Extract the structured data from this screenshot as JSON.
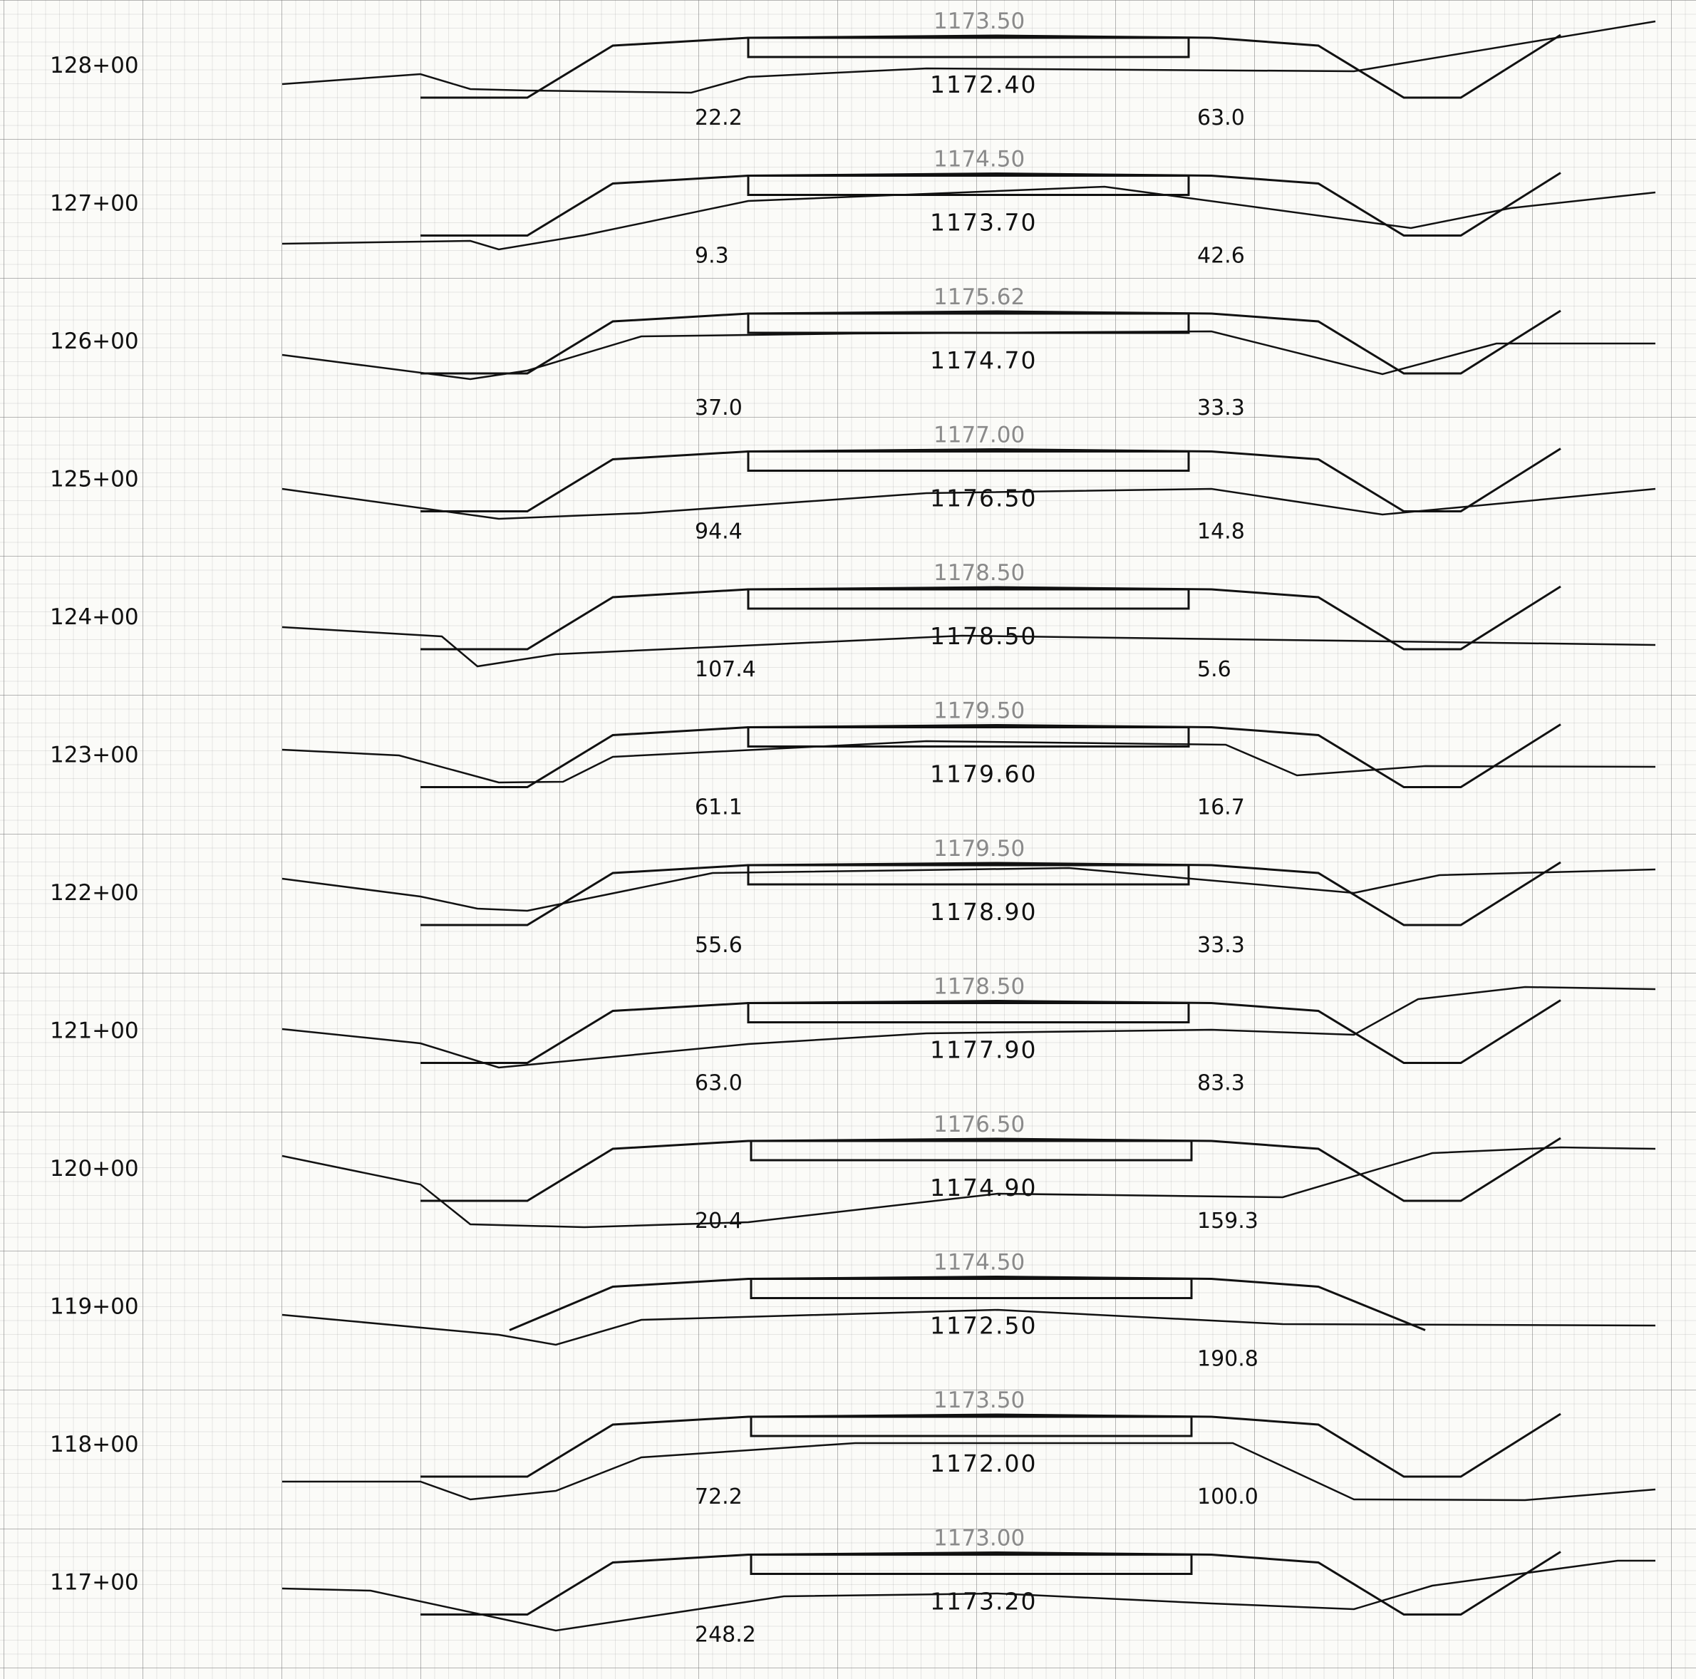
{
  "sections": [
    {
      "station": "128+00",
      "design_elev": "1173.50",
      "ground_elev": "1172.40",
      "area_left": "22.2",
      "area_right": "63.0"
    },
    {
      "station": "127+00",
      "design_elev": "1174.50",
      "ground_elev": "1173.70",
      "area_left": "9.3",
      "area_right": "42.6"
    },
    {
      "station": "126+00",
      "design_elev": "1175.62",
      "ground_elev": "1174.70",
      "area_left": "37.0",
      "area_right": "33.3"
    },
    {
      "station": "125+00",
      "design_elev": "1177.00",
      "ground_elev": "1176.50",
      "area_left": "94.4",
      "area_right": "14.8"
    },
    {
      "station": "124+00",
      "design_elev": "1178.50",
      "ground_elev": "1178.50",
      "area_left": "107.4",
      "area_right": "5.6"
    },
    {
      "station": "123+00",
      "design_elev": "1179.50",
      "ground_elev": "1179.60",
      "area_left": "61.1",
      "area_right": "16.7"
    },
    {
      "station": "122+00",
      "design_elev": "1179.50",
      "ground_elev": "1178.90",
      "area_left": "55.6",
      "area_right": "33.3"
    },
    {
      "station": "121+00",
      "design_elev": "1178.50",
      "ground_elev": "1177.90",
      "area_left": "63.0",
      "area_right": "83.3"
    },
    {
      "station": "120+00",
      "design_elev": "1176.50",
      "ground_elev": "1174.90",
      "area_left": "20.4",
      "area_right": "159.3"
    },
    {
      "station": "119+00",
      "design_elev": "1174.50",
      "ground_elev": "1172.50",
      "area_left": "",
      "area_right": "190.8"
    },
    {
      "station": "118+00",
      "design_elev": "1173.50",
      "ground_elev": "1172.00",
      "area_left": "72.2",
      "area_right": "100.0"
    },
    {
      "station": "117+00",
      "design_elev": "1173.00",
      "ground_elev": "1173.20",
      "area_left": "248.2",
      "area_right": ""
    }
  ]
}
